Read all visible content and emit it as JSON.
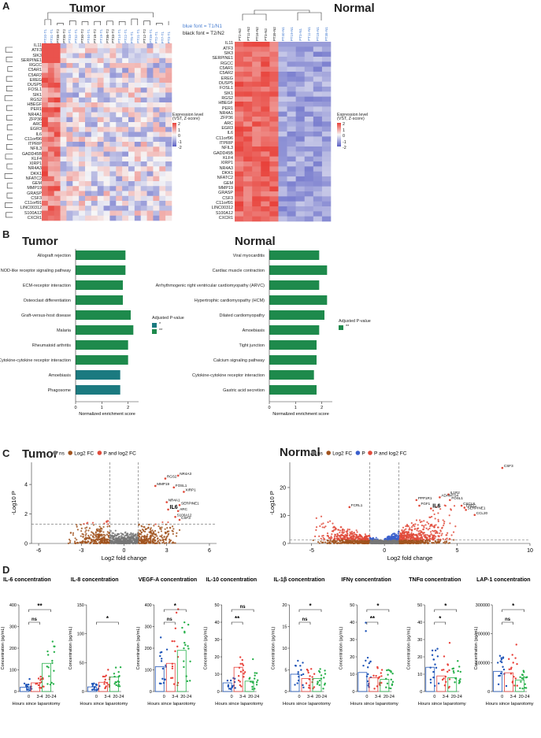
{
  "panels": {
    "A": "A",
    "B": "B",
    "C": "C",
    "D": "D"
  },
  "panelA": {
    "tumor_title": "Tumor",
    "normal_title": "Normal",
    "legend_note_blue": "blue font = T1/N1",
    "legend_note_black": "black font = T2/N2",
    "colorbar_title": "Expression level (VST, Z-score)",
    "colorbar_ticks": [
      "2",
      "1",
      "0",
      "-1",
      "-2"
    ],
    "colors": {
      "high": "#e8413a",
      "mid": "#f7f7f7",
      "low": "#5a5fc4",
      "accent_blue": "#4a7fd1"
    },
    "tumor_genes": [
      "IL11",
      "ATF3",
      "SIK3",
      "SERPINE1",
      "RGCC",
      "C5AR1",
      "C5AR2",
      "EREG",
      "DUSP5",
      "FOSL1",
      "SIK1",
      "RGS2",
      "HBEGF",
      "PER1",
      "NR4A1",
      "ZFP36",
      "ARC",
      "EGR3",
      "IL6",
      "C11orf96",
      "ITPRIP",
      "NFIL3",
      "GADD45B",
      "KLF4",
      "XIRP1",
      "NR4A3",
      "DKK1",
      "NFATC2",
      "GEM",
      "MMP19",
      "GRASP",
      "CSF3",
      "C11orf91",
      "LINC00312",
      "S100A12",
      "CXCR1"
    ],
    "normal_genes": [
      "IL11",
      "ATF3",
      "SIK3",
      "SERPINE1",
      "RGCC",
      "C5AR1",
      "C5AR2",
      "EREG",
      "DUSP5",
      "FOSL1",
      "SIK1",
      "RGS2",
      "HBEGF",
      "PER1",
      "NR4A1",
      "ZFP36",
      "ARC",
      "EGR3",
      "IL6",
      "C11orf96",
      "ITPRIP",
      "NFIL3",
      "GADD45B",
      "KLF4",
      "XIRP1",
      "NR4A3",
      "DKK1",
      "NFATC2",
      "GEM",
      "MMP19",
      "GRASP",
      "CSF3",
      "C11orf91",
      "LINC00312",
      "S100A12",
      "CXCR1"
    ],
    "tumor_samples": [
      "PT20-T1",
      "PT31-T1",
      "PT38-T2",
      "PT35-T2",
      "PT33-T1",
      "PT32-T1",
      "PT30-T2",
      "PT40-T1",
      "PT18-T2",
      "PT19-T1",
      "PT36-T2",
      "PT33-T2",
      "PT14-T1",
      "PT22-T1",
      "PT5-T1",
      "PT21-T1",
      "PT12-T2",
      "PT39-T1",
      "PT2-T1",
      "PT7-T1",
      "PT3-T1"
    ],
    "normal_samples": [
      "PT2-N2",
      "PT11-N2",
      "PT16-N2",
      "PT3-N2",
      "PT39-N2",
      "PT40-N1",
      "PT19-N1",
      "PT3-N1",
      "PT11-N1",
      "PT18-N1",
      "PT38-N1"
    ]
  },
  "panelB": {
    "tumor_title": "Tumor",
    "normal_title": "Normal",
    "xlabel": "Normalized enrichment score",
    "legend_title": "Adjusted P-value",
    "legend_items": [
      "*",
      "**"
    ],
    "colors": {
      "sig2": "#1e8a4c",
      "sig1": "#1b7a80"
    },
    "tumor_pathways": [
      {
        "label": "Allograft rejection",
        "nes": 1.9,
        "sig": "**"
      },
      {
        "label": "NOD-like receptor signaling pathway",
        "nes": 1.9,
        "sig": "**"
      },
      {
        "label": "ECM-receptor interaction",
        "nes": 1.8,
        "sig": "**"
      },
      {
        "label": "Osteoclast differentiation",
        "nes": 1.8,
        "sig": "**"
      },
      {
        "label": "Graft-versus-host disease",
        "nes": 2.1,
        "sig": "**"
      },
      {
        "label": "Malaria",
        "nes": 2.2,
        "sig": "**"
      },
      {
        "label": "Rheumatoid arthritis",
        "nes": 2.0,
        "sig": "**"
      },
      {
        "label": "Cytokine-cytokine receptor interaction",
        "nes": 2.0,
        "sig": "**"
      },
      {
        "label": "Amoebiasis",
        "nes": 1.7,
        "sig": "*"
      },
      {
        "label": "Phagosome",
        "nes": 1.7,
        "sig": "*"
      }
    ],
    "normal_pathways": [
      {
        "label": "Viral myocarditis",
        "nes": 1.9,
        "sig": "**"
      },
      {
        "label": "Cardiac muscle contraction",
        "nes": 2.2,
        "sig": "**"
      },
      {
        "label": "Arrhythmogenic right ventricular cardiomyopathy (ARVC)",
        "nes": 1.9,
        "sig": "**"
      },
      {
        "label": "Hypertrophic cardiomyopathy (HCM)",
        "nes": 2.2,
        "sig": "**"
      },
      {
        "label": "Dilated cardiomyopathy",
        "nes": 2.1,
        "sig": "**"
      },
      {
        "label": "Amoebiasis",
        "nes": 1.9,
        "sig": "**"
      },
      {
        "label": "Tight junction",
        "nes": 1.8,
        "sig": "**"
      },
      {
        "label": "Calcium signaling pathway",
        "nes": 1.8,
        "sig": "**"
      },
      {
        "label": "Cytokine-cytokine receptor interaction",
        "nes": 1.7,
        "sig": "**"
      },
      {
        "label": "Gastric acid secretion",
        "nes": 1.8,
        "sig": "**"
      }
    ],
    "ticks": [
      "0",
      "1",
      "2"
    ]
  },
  "panelC": {
    "tumor_title": "Tumor",
    "normal_title": "Normal",
    "legend_tumor": [
      "ns",
      "Log2 FC",
      "P and log2 FC"
    ],
    "legend_normal": [
      "ns",
      "Log2 FC",
      "P",
      "P and log2 FC"
    ],
    "xlabel": "Log2 fold change",
    "ylabel": "-Log10 P",
    "colors": {
      "ns": "#777777",
      "fc": "#a0521d",
      "p": "#3a5fcd",
      "both": "#e04a3a"
    },
    "tumor": {
      "xlim": [
        -6.5,
        6.5
      ],
      "ylim": [
        0,
        5.5
      ],
      "xticks": [
        "-6",
        "-3",
        "0",
        "3",
        "6"
      ],
      "yticks": [
        "0",
        "2",
        "4"
      ],
      "labels": [
        {
          "g": "NR4A3",
          "x": 3.8,
          "y": 4.6
        },
        {
          "g": "RGS2",
          "x": 2.9,
          "y": 4.4
        },
        {
          "g": "MMP19",
          "x": 2.2,
          "y": 3.9
        },
        {
          "g": "FOSL1",
          "x": 3.5,
          "y": 3.8
        },
        {
          "g": "XIRP1",
          "x": 4.2,
          "y": 3.5
        },
        {
          "g": "NR4A1",
          "x": 3.0,
          "y": 2.8
        },
        {
          "g": "SERPINE1",
          "x": 3.9,
          "y": 2.6
        },
        {
          "g": "IL6",
          "x": 3.1,
          "y": 2.3
        },
        {
          "g": "ARC",
          "x": 3.8,
          "y": 2.2
        },
        {
          "g": "S100A12",
          "x": 3.6,
          "y": 1.8
        },
        {
          "g": "CSF3",
          "x": 3.9,
          "y": 1.6
        }
      ]
    },
    "normal": {
      "xlim": [
        -6.5,
        10
      ],
      "ylim": [
        0,
        29
      ],
      "xticks": [
        "-5",
        "0",
        "5",
        "10"
      ],
      "yticks": [
        "0",
        "10",
        "20"
      ],
      "labels": [
        {
          "g": "CSF3",
          "x": 8.1,
          "y": 27
        },
        {
          "g": "IL1R2",
          "x": 4.4,
          "y": 17.5
        },
        {
          "g": "ADAMTS4",
          "x": 3.8,
          "y": 16.5
        },
        {
          "g": "FOSL1",
          "x": 4.5,
          "y": 15.5
        },
        {
          "g": "CXCL8",
          "x": 5.3,
          "y": 13.5
        },
        {
          "g": "EREG",
          "x": 5.5,
          "y": 12.8
        },
        {
          "g": "SERPINE1",
          "x": 5.6,
          "y": 12.0
        },
        {
          "g": "IL6",
          "x": 3.2,
          "y": 12.5
        },
        {
          "g": "CCL20",
          "x": 6.2,
          "y": 10.2
        },
        {
          "g": "FGF1",
          "x": 2.4,
          "y": 13.5
        },
        {
          "g": "PPP1R1",
          "x": 2.2,
          "y": 15.5
        },
        {
          "g": "FCRL1",
          "x": -2.4,
          "y": 13.0
        }
      ]
    }
  },
  "panelD": {
    "ylabel": "Concentration (pg/mL)",
    "xlabel": "Hours since laparotomy",
    "groups": [
      "0",
      "3-4",
      "20-24"
    ],
    "colors": [
      "#1f55b8",
      "#e8413a",
      "#27b04a"
    ],
    "plots": [
      {
        "title": "IL-6 concentration",
        "ymax": 400,
        "yticks": [
          "0",
          "100",
          "200",
          "300",
          "400"
        ],
        "means": [
          20,
          40,
          130
        ],
        "sig": [
          {
            "a": 0,
            "b": 1,
            "t": "ns"
          },
          {
            "a": 0,
            "b": 2,
            "t": "**"
          }
        ]
      },
      {
        "title": "IL-8 concentration",
        "ymax": 150,
        "yticks": [
          "0",
          "50",
          "100",
          "150"
        ],
        "means": [
          8,
          16,
          25
        ],
        "sig": [
          {
            "a": 0,
            "b": 2,
            "t": "*"
          }
        ]
      },
      {
        "title": "VEGF-A concentration",
        "ymax": 400,
        "yticks": [
          "0",
          "100",
          "200",
          "300",
          "400"
        ],
        "means": [
          115,
          130,
          190
        ],
        "sig": [
          {
            "a": 0,
            "b": 1,
            "t": "ns"
          },
          {
            "a": 0,
            "b": 2,
            "t": "*"
          }
        ]
      },
      {
        "title": "IL-10 concentration",
        "ymax": 50,
        "yticks": [
          "0",
          "10",
          "20",
          "30",
          "40",
          "50"
        ],
        "means": [
          5,
          14,
          6
        ],
        "sig": [
          {
            "a": 0,
            "b": 1,
            "t": "**"
          },
          {
            "a": 0,
            "b": 2,
            "t": "ns"
          }
        ]
      },
      {
        "title": "IL-1β concentration",
        "ymax": 20,
        "yticks": [
          "0",
          "5",
          "10",
          "15",
          "20"
        ],
        "means": [
          4,
          3,
          3
        ],
        "sig": [
          {
            "a": 0,
            "b": 1,
            "t": "ns"
          },
          {
            "a": 0,
            "b": 2,
            "t": "*"
          }
        ]
      },
      {
        "title": "IFNγ concentration",
        "ymax": 50,
        "yticks": [
          "0",
          "10",
          "20",
          "30",
          "40",
          "50"
        ],
        "means": [
          11,
          8,
          7
        ],
        "sig": [
          {
            "a": 0,
            "b": 1,
            "t": "**"
          },
          {
            "a": 0,
            "b": 2,
            "t": "*"
          }
        ]
      },
      {
        "title": "TNFα concentration",
        "ymax": 50,
        "yticks": [
          "0",
          "10",
          "20",
          "30",
          "40",
          "50"
        ],
        "means": [
          14,
          9,
          8
        ],
        "sig": [
          {
            "a": 0,
            "b": 1,
            "t": "*"
          },
          {
            "a": 0,
            "b": 2,
            "t": "*"
          }
        ]
      },
      {
        "title": "LAP-1 concentration",
        "ymax": 300000,
        "yticks": [
          "0",
          "100000",
          "200000",
          "300000"
        ],
        "means": [
          70000,
          65000,
          40000
        ],
        "sig": [
          {
            "a": 0,
            "b": 1,
            "t": "ns"
          },
          {
            "a": 0,
            "b": 2,
            "t": "*"
          }
        ]
      }
    ]
  }
}
